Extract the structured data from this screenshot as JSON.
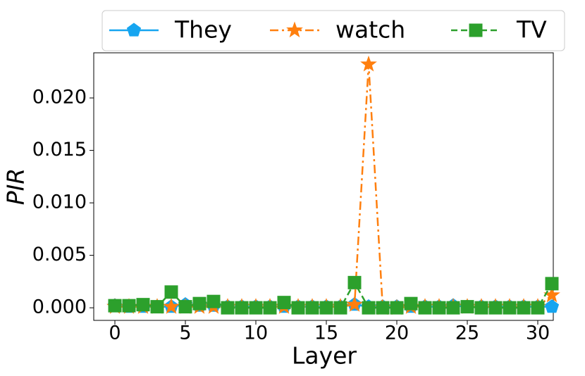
{
  "chart_data": {
    "type": "line",
    "xlabel": "Layer",
    "ylabel": "PIR",
    "x": [
      0,
      1,
      2,
      3,
      4,
      5,
      6,
      7,
      8,
      9,
      10,
      11,
      12,
      13,
      14,
      15,
      16,
      17,
      18,
      19,
      20,
      21,
      22,
      23,
      24,
      25,
      26,
      27,
      28,
      29,
      30,
      31
    ],
    "series": [
      {
        "name": "They",
        "color": "#16a5f0",
        "marker": "pentagon",
        "linestyle": "solid",
        "values": [
          0.0002,
          0.0001,
          0.0001,
          0.0001,
          0.0001,
          0.0003,
          0.0002,
          0.0002,
          0.0001,
          0.0001,
          0.0001,
          0.0001,
          0.0001,
          0.0001,
          0.0001,
          0.0001,
          0.0001,
          0.0003,
          0.0001,
          0.0001,
          0.0001,
          0.0001,
          0.0001,
          0.0001,
          0.0002,
          0.0001,
          0.0001,
          0.0001,
          0.0001,
          0.0001,
          0.0001,
          0.0001
        ]
      },
      {
        "name": "watch",
        "color": "#ff7f0e",
        "marker": "star",
        "linestyle": "dashdot",
        "values": [
          0.0001,
          0.0001,
          0.0001,
          0.0001,
          0.0001,
          0.0001,
          0.0001,
          0.0001,
          0.0001,
          0.0001,
          0.0001,
          0.0001,
          0.0001,
          0.0001,
          0.0001,
          0.0001,
          0.0001,
          0.0003,
          0.0232,
          0,
          0,
          0.0001,
          0.0001,
          0.0001,
          0.0001,
          0.0001,
          0.0001,
          0.0001,
          0.0001,
          0.0001,
          0.0001,
          0.0012
        ]
      },
      {
        "name": "TV",
        "color": "#2ca02c",
        "marker": "square",
        "linestyle": "dashed",
        "values": [
          0.0002,
          0.0002,
          0.0003,
          0.0001,
          0.0015,
          0.0001,
          0.0004,
          0.0006,
          0,
          0,
          0,
          0,
          0.0005,
          0,
          0,
          0,
          0,
          0.0024,
          0,
          0,
          0,
          0.0004,
          0,
          0,
          0,
          0.0001,
          0,
          0,
          0,
          0,
          0,
          0.0023
        ]
      }
    ],
    "xlim": [
      -1.5,
      31.1
    ],
    "ylim": [
      -0.0012,
      0.0243
    ],
    "xticks": [
      0,
      5,
      10,
      15,
      20,
      25,
      30
    ],
    "yticks": [
      {
        "value": 0,
        "label": "0.000"
      },
      {
        "value": 0.005,
        "label": "0.005"
      },
      {
        "value": 0.01,
        "label": "0.010"
      },
      {
        "value": 0.015,
        "label": "0.015"
      },
      {
        "value": 0.02,
        "label": "0.020"
      }
    ],
    "legend": "top"
  }
}
